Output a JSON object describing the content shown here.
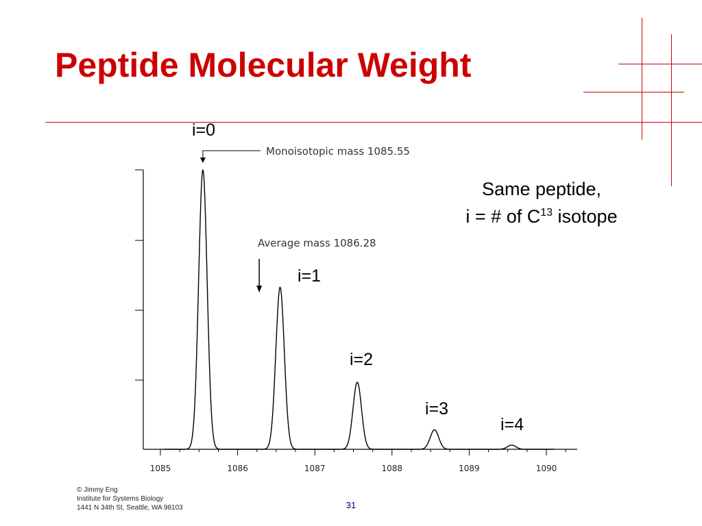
{
  "slide": {
    "title": "Peptide Molecular Weight",
    "note_line1": "Same peptide,",
    "note_line2_prefix": "i = # of C",
    "note_line2_sup": "13",
    "note_line2_suffix": " isotope",
    "credit_lines": [
      "© Jimmy Eng",
      "Institute for Systems Biology",
      "1441  N 34th St, Seattle, WA 98103"
    ],
    "page_number": "31",
    "accent_color": "#cc0000"
  },
  "chart_data": {
    "type": "line",
    "title": "",
    "xlabel": "",
    "ylabel": "",
    "x_ticks": [
      "1085",
      "1086",
      "1087",
      "1088",
      "1089",
      "1090"
    ],
    "x_range": [
      1085,
      1090.2
    ],
    "y_range": [
      0,
      100
    ],
    "peaks": [
      {
        "label": "i=0",
        "mz": 1085.55,
        "rel_intensity": 100
      },
      {
        "label": "i=1",
        "mz": 1086.55,
        "rel_intensity": 58
      },
      {
        "label": "i=2",
        "mz": 1087.55,
        "rel_intensity": 24
      },
      {
        "label": "i=3",
        "mz": 1088.55,
        "rel_intensity": 7
      },
      {
        "label": "i=4",
        "mz": 1089.55,
        "rel_intensity": 1.5
      }
    ],
    "annotations": [
      {
        "text": "Monoisotopic mass 1085.55",
        "mz": 1085.55
      },
      {
        "text": "Average mass 1086.28",
        "mz": 1086.28
      }
    ],
    "grid": false
  }
}
